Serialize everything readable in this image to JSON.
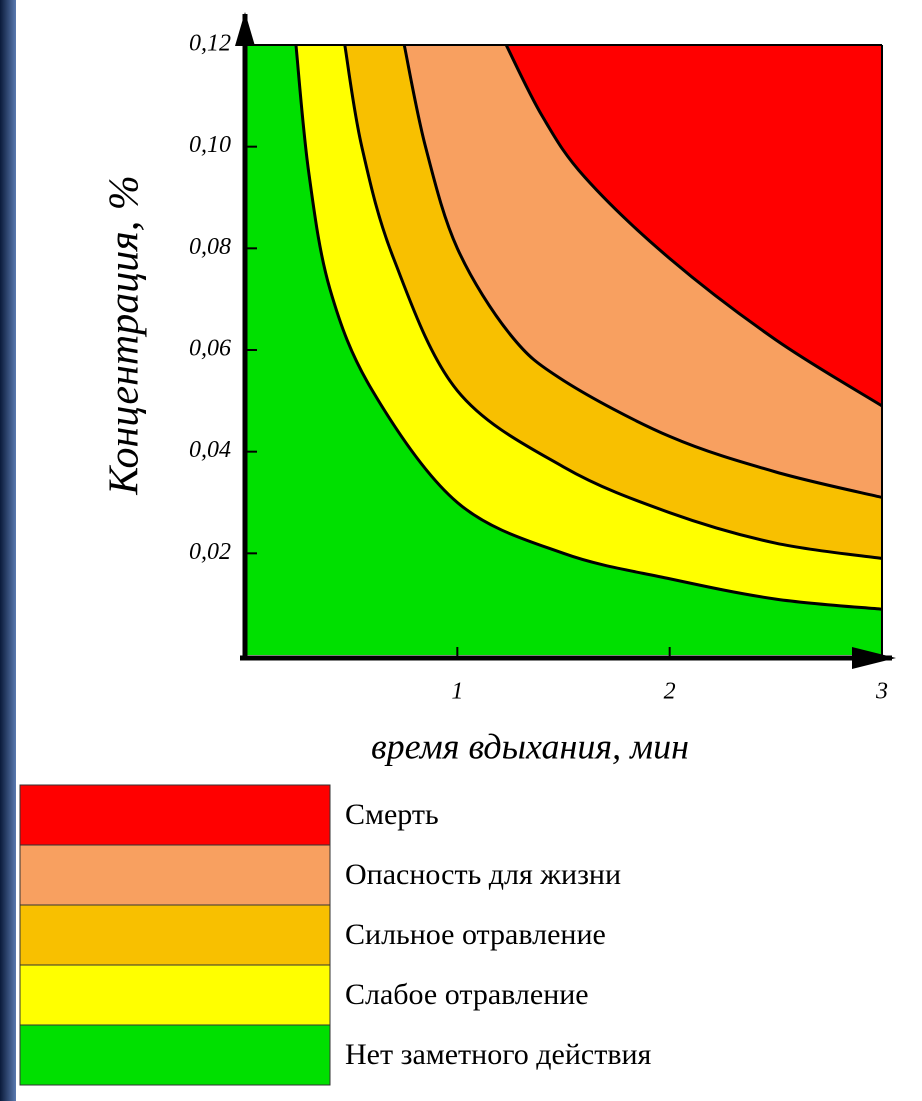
{
  "chart_data": {
    "type": "region",
    "x_label": "время вдыхания, мин",
    "y_label": "Концентрация, %",
    "xlim": [
      0,
      3
    ],
    "ylim": [
      0,
      0.12
    ],
    "xticks": [
      1,
      2,
      3
    ],
    "yticks": [
      {
        "value": 0.02,
        "label": "0,02"
      },
      {
        "value": 0.04,
        "label": "0,04"
      },
      {
        "value": 0.06,
        "label": "0,06"
      },
      {
        "value": 0.08,
        "label": "0,08"
      },
      {
        "value": 0.1,
        "label": "0,10"
      },
      {
        "value": 0.12,
        "label": "0,12"
      }
    ],
    "series": [
      {
        "name": "Смерть",
        "color": "#ff0000",
        "x": [
          1.23,
          1.4,
          1.6,
          2,
          2.5,
          3
        ],
        "values": [
          0.12,
          0.106,
          0.094,
          0.078,
          0.062,
          0.049
        ]
      },
      {
        "name": "Опасность для жизни",
        "color": "#f8a060",
        "x": [
          0.75,
          0.85,
          1,
          1.25,
          1.5,
          2,
          2.5,
          3
        ],
        "values": [
          0.12,
          0.1,
          0.08,
          0.063,
          0.054,
          0.043,
          0.036,
          0.031
        ]
      },
      {
        "name": "Сильное отравление",
        "color": "#f8c000",
        "x": [
          0.47,
          0.55,
          0.7,
          1,
          1.5,
          2,
          2.5,
          3
        ],
        "values": [
          0.12,
          0.1,
          0.078,
          0.052,
          0.037,
          0.028,
          0.022,
          0.019
        ]
      },
      {
        "name": "Слабое отравление",
        "color": "#ffff00",
        "x": [
          0.24,
          0.3,
          0.4,
          0.6,
          1,
          1.5,
          2,
          2.5,
          3
        ],
        "values": [
          0.12,
          0.095,
          0.072,
          0.052,
          0.03,
          0.02,
          0.015,
          0.011,
          0.009
        ]
      },
      {
        "name": "Нет заметного действия",
        "color": "#00e000"
      }
    ]
  }
}
